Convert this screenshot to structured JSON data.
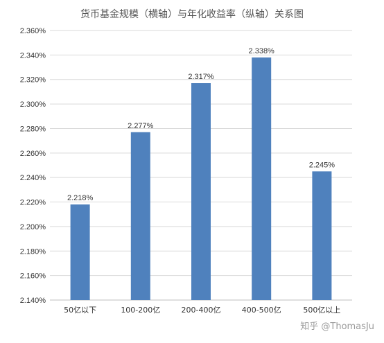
{
  "chart_data": {
    "type": "bar",
    "title": "货币基金规模（横轴）与年化收益率（纵轴）关系图",
    "xlabel": "",
    "ylabel": "",
    "categories": [
      "50亿以下",
      "100-200亿",
      "200-400亿",
      "400-500亿",
      "500亿以上"
    ],
    "values": [
      2.218,
      2.277,
      2.317,
      2.338,
      2.245
    ],
    "value_labels": [
      "2.218%",
      "2.277%",
      "2.317%",
      "2.338%",
      "2.245%"
    ],
    "ylim": [
      2.14,
      2.36
    ],
    "yticks": [
      2.14,
      2.16,
      2.18,
      2.2,
      2.22,
      2.24,
      2.26,
      2.28,
      2.3,
      2.32,
      2.34,
      2.36
    ],
    "ytick_labels": [
      "2.140%",
      "2.160%",
      "2.180%",
      "2.200%",
      "2.220%",
      "2.240%",
      "2.260%",
      "2.280%",
      "2.300%",
      "2.320%",
      "2.340%",
      "2.360%"
    ],
    "grid": true,
    "legend": "none",
    "bar_color": "#4f81bd",
    "grid_color": "#d9d9d9"
  },
  "watermark": "知乎 @ThomasJu"
}
